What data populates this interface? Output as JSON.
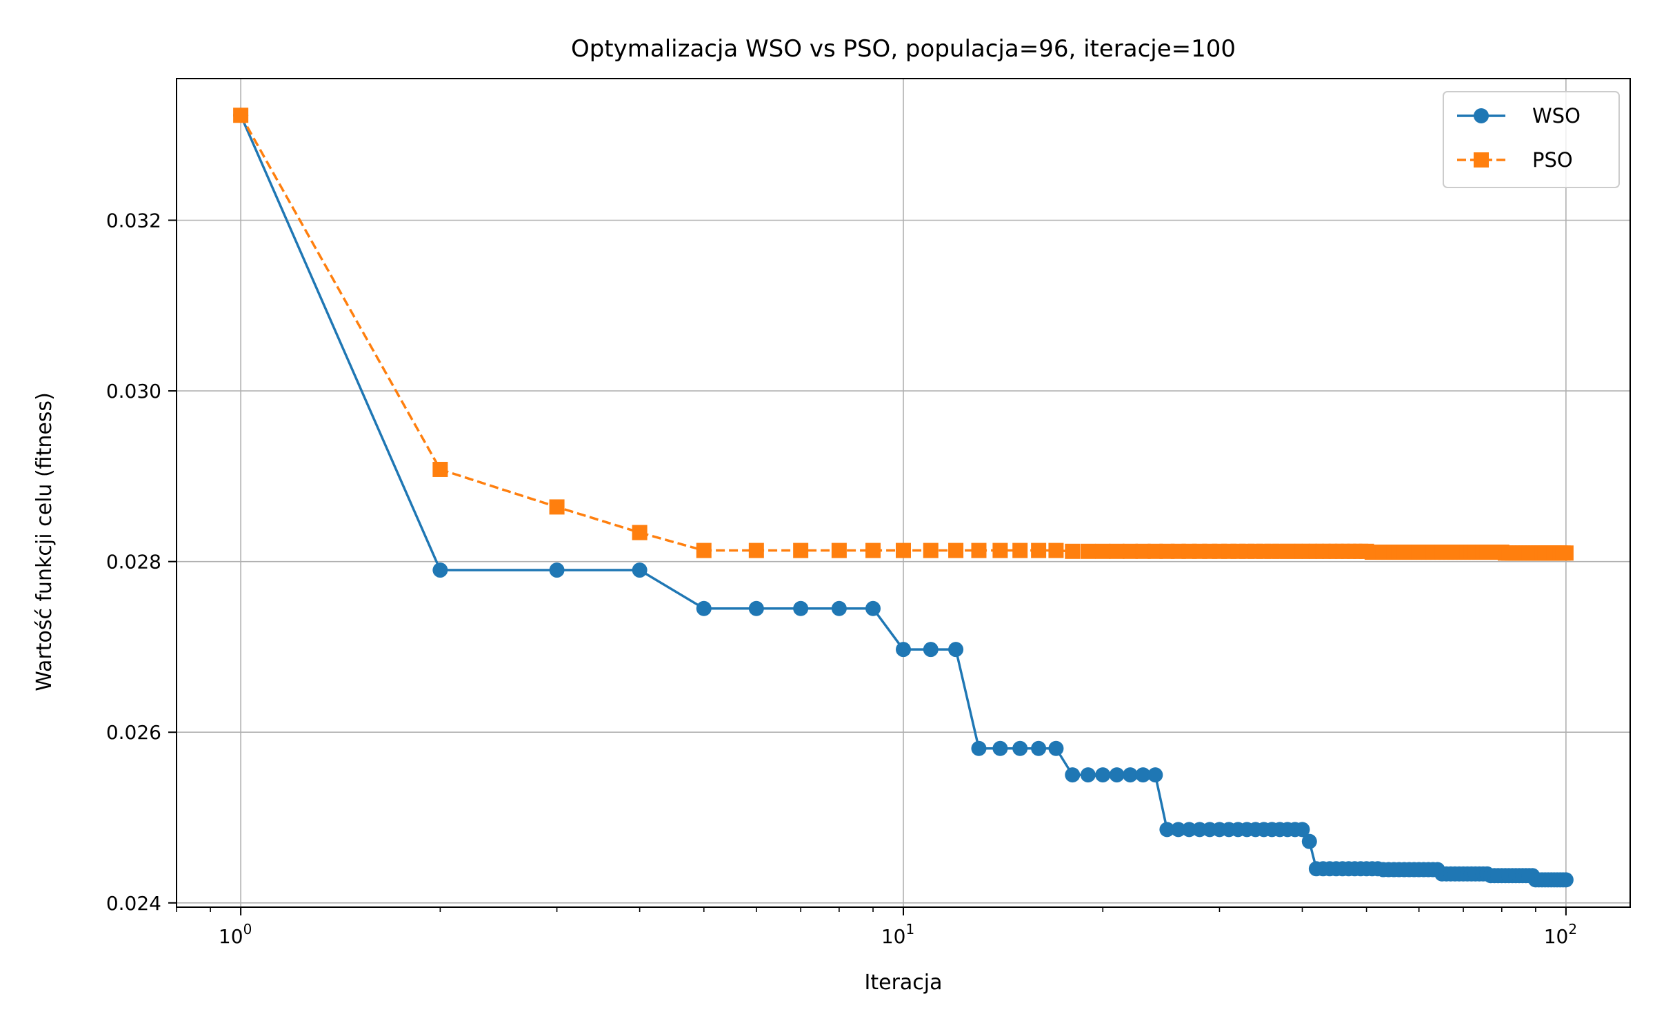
{
  "chart_data": {
    "type": "line",
    "title": "Optymalizacja WSO vs PSO, populacja=96, iteracje=100",
    "xlabel": "Iteracja",
    "ylabel": "Wartość funkcji celu (fitness)",
    "xscale": "log",
    "xlim": [
      0.8,
      125
    ],
    "ylim": [
      0.02395,
      0.03366
    ],
    "grid": true,
    "legend": "top-right",
    "x_ticks": [
      {
        "value": 1,
        "base": "10",
        "exp": "0"
      },
      {
        "value": 10,
        "base": "10",
        "exp": "1"
      },
      {
        "value": 100,
        "base": "10",
        "exp": "2"
      }
    ],
    "y_ticks": [
      {
        "value": 0.024,
        "label": "0.024"
      },
      {
        "value": 0.026,
        "label": "0.026"
      },
      {
        "value": 0.028,
        "label": "0.028"
      },
      {
        "value": 0.03,
        "label": "0.030"
      },
      {
        "value": 0.032,
        "label": "0.032"
      }
    ],
    "series": [
      {
        "name": "WSO",
        "color": "#1f77b4",
        "line_style": "solid",
        "marker": "circle",
        "x": [
          1,
          2,
          3,
          4,
          5,
          6,
          7,
          8,
          9,
          10,
          11,
          12,
          13,
          14,
          15,
          16,
          17,
          18,
          19,
          20,
          21,
          22,
          23,
          24,
          25,
          26,
          27,
          28,
          29,
          30,
          31,
          32,
          33,
          34,
          35,
          36,
          37,
          38,
          39,
          40,
          41,
          42,
          43,
          44,
          45,
          46,
          47,
          48,
          49,
          50,
          51,
          52,
          53,
          54,
          55,
          56,
          57,
          58,
          59,
          60,
          61,
          62,
          63,
          64,
          65,
          66,
          67,
          68,
          69,
          70,
          71,
          72,
          73,
          74,
          75,
          76,
          77,
          78,
          79,
          80,
          81,
          82,
          83,
          84,
          85,
          86,
          87,
          88,
          89,
          90,
          91,
          92,
          93,
          94,
          95,
          96,
          97,
          98,
          99,
          100
        ],
        "y": [
          0.03323,
          0.0279,
          0.0279,
          0.0279,
          0.02745,
          0.02745,
          0.02745,
          0.02745,
          0.02745,
          0.02697,
          0.02697,
          0.02697,
          0.02581,
          0.02581,
          0.02581,
          0.02581,
          0.02581,
          0.0255,
          0.0255,
          0.0255,
          0.0255,
          0.0255,
          0.0255,
          0.0255,
          0.02486,
          0.02486,
          0.02486,
          0.02486,
          0.02486,
          0.02486,
          0.02486,
          0.02486,
          0.02486,
          0.02486,
          0.02486,
          0.02486,
          0.02486,
          0.02486,
          0.02486,
          0.02486,
          0.02472,
          0.0244,
          0.0244,
          0.0244,
          0.0244,
          0.0244,
          0.0244,
          0.0244,
          0.0244,
          0.0244,
          0.0244,
          0.0244,
          0.02439,
          0.02439,
          0.02439,
          0.02439,
          0.02439,
          0.02439,
          0.02439,
          0.02439,
          0.02439,
          0.02439,
          0.02439,
          0.02439,
          0.02434,
          0.02434,
          0.02434,
          0.02434,
          0.02434,
          0.02434,
          0.02434,
          0.02434,
          0.02434,
          0.02434,
          0.02434,
          0.02434,
          0.02432,
          0.02432,
          0.02432,
          0.02432,
          0.02432,
          0.02432,
          0.02432,
          0.02432,
          0.02432,
          0.02432,
          0.02432,
          0.02432,
          0.02432,
          0.02427,
          0.02427,
          0.02427,
          0.02427,
          0.02427,
          0.02427,
          0.02427,
          0.02427,
          0.02427,
          0.02427,
          0.02427
        ]
      },
      {
        "name": "PSO",
        "color": "#ff7f0e",
        "line_style": "dashed",
        "marker": "square",
        "x": [
          1,
          2,
          3,
          4,
          5,
          6,
          7,
          8,
          9,
          10,
          11,
          12,
          13,
          14,
          15,
          16,
          17,
          18,
          19,
          20,
          21,
          22,
          23,
          24,
          25,
          26,
          27,
          28,
          29,
          30,
          31,
          32,
          33,
          34,
          35,
          36,
          37,
          38,
          39,
          40,
          41,
          42,
          43,
          44,
          45,
          46,
          47,
          48,
          49,
          50,
          51,
          52,
          53,
          54,
          55,
          56,
          57,
          58,
          59,
          60,
          61,
          62,
          63,
          64,
          65,
          66,
          67,
          68,
          69,
          70,
          71,
          72,
          73,
          74,
          75,
          76,
          77,
          78,
          79,
          80,
          81,
          82,
          83,
          84,
          85,
          86,
          87,
          88,
          89,
          90,
          91,
          92,
          93,
          94,
          95,
          96,
          97,
          98,
          99,
          100
        ],
        "y": [
          0.03323,
          0.02908,
          0.02864,
          0.02834,
          0.02813,
          0.02813,
          0.02813,
          0.02813,
          0.02813,
          0.02813,
          0.02813,
          0.02813,
          0.02813,
          0.02813,
          0.02813,
          0.02813,
          0.02813,
          0.02812,
          0.02812,
          0.02812,
          0.02812,
          0.02812,
          0.02812,
          0.02812,
          0.02812,
          0.02812,
          0.02812,
          0.02812,
          0.02812,
          0.02812,
          0.02812,
          0.02812,
          0.02812,
          0.02812,
          0.02812,
          0.02812,
          0.02812,
          0.02812,
          0.02812,
          0.02812,
          0.02812,
          0.02812,
          0.02812,
          0.02812,
          0.02812,
          0.02812,
          0.02812,
          0.02812,
          0.02812,
          0.02812,
          0.02811,
          0.02811,
          0.02811,
          0.02811,
          0.02811,
          0.02811,
          0.02811,
          0.02811,
          0.02811,
          0.02811,
          0.02811,
          0.02811,
          0.02811,
          0.02811,
          0.02811,
          0.02811,
          0.02811,
          0.02811,
          0.02811,
          0.02811,
          0.02811,
          0.02811,
          0.02811,
          0.02811,
          0.02811,
          0.02811,
          0.02811,
          0.02811,
          0.02811,
          0.02811,
          0.0281,
          0.0281,
          0.0281,
          0.0281,
          0.0281,
          0.0281,
          0.0281,
          0.0281,
          0.0281,
          0.0281,
          0.0281,
          0.0281,
          0.0281,
          0.0281,
          0.0281,
          0.0281,
          0.0281,
          0.0281,
          0.0281,
          0.0281
        ]
      }
    ]
  }
}
